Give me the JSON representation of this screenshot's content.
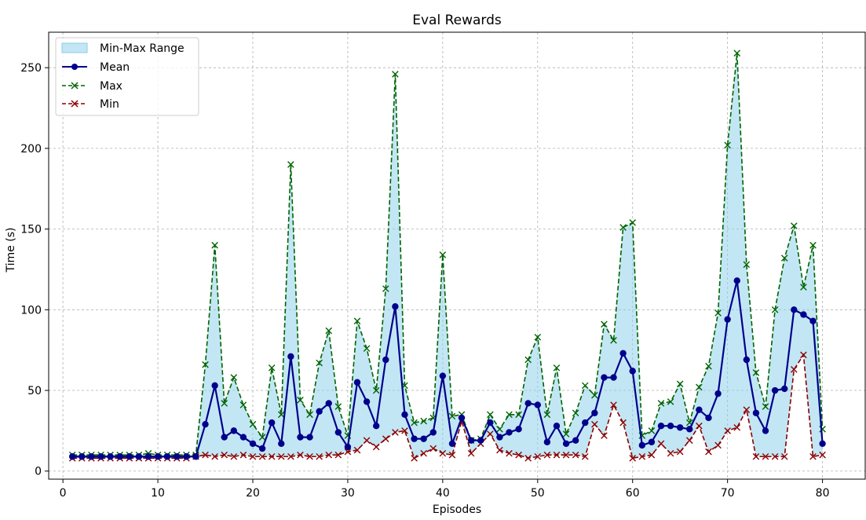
{
  "chart_data": {
    "type": "line",
    "title": "Eval Rewards",
    "xlabel": "Episodes",
    "ylabel": "Time (s)",
    "xlim": [
      -1.5,
      84.5
    ],
    "ylim": [
      -5,
      272
    ],
    "xticks": [
      0,
      10,
      20,
      30,
      40,
      50,
      60,
      70,
      80
    ],
    "yticks": [
      0,
      50,
      100,
      150,
      200,
      250
    ],
    "grid": true,
    "legend_position": "top-left",
    "x": [
      1,
      2,
      3,
      4,
      5,
      6,
      7,
      8,
      9,
      10,
      11,
      12,
      13,
      14,
      15,
      16,
      17,
      18,
      19,
      20,
      21,
      22,
      23,
      24,
      25,
      26,
      27,
      28,
      29,
      30,
      31,
      32,
      33,
      34,
      35,
      36,
      37,
      38,
      39,
      40,
      41,
      42,
      43,
      44,
      45,
      46,
      47,
      48,
      49,
      50,
      51,
      52,
      53,
      54,
      55,
      56,
      57,
      58,
      59,
      60,
      61,
      62,
      63,
      64,
      65,
      66,
      67,
      68,
      69,
      70,
      71,
      72,
      73,
      74,
      75,
      76,
      77,
      78,
      79,
      80
    ],
    "fill": {
      "name": "Min-Max Range",
      "color": "#87ceeb"
    },
    "series": [
      {
        "name": "Mean",
        "color": "#00008b",
        "style": "solid",
        "marker": "circle",
        "values": [
          9,
          9,
          9,
          9,
          9,
          9,
          9,
          9,
          9,
          9,
          9,
          9,
          9,
          9,
          29,
          53,
          21,
          25,
          21,
          17,
          14,
          30,
          17,
          71,
          21,
          21,
          37,
          42,
          24,
          15,
          55,
          43,
          28,
          69,
          102,
          35,
          20,
          20,
          24,
          59,
          17,
          33,
          19,
          19,
          30,
          21,
          24,
          26,
          42,
          41,
          18,
          28,
          17,
          19,
          30,
          36,
          58,
          58,
          73,
          62,
          16,
          18,
          28,
          28,
          27,
          26,
          38,
          33,
          48,
          94,
          118,
          69,
          36,
          25,
          50,
          51,
          100,
          97,
          93,
          17
        ]
      },
      {
        "name": "Max",
        "color": "#006400",
        "style": "dashed",
        "marker": "x",
        "values": [
          10,
          10,
          10,
          10,
          10,
          10,
          10,
          10,
          11,
          10,
          10,
          10,
          10,
          10,
          66,
          140,
          42,
          58,
          41,
          29,
          21,
          64,
          35,
          190,
          44,
          35,
          67,
          87,
          40,
          22,
          93,
          76,
          50,
          113,
          246,
          53,
          30,
          31,
          33,
          134,
          34,
          35,
          19,
          20,
          35,
          26,
          35,
          35,
          69,
          83,
          35,
          64,
          23,
          36,
          53,
          47,
          91,
          81,
          151,
          154,
          22,
          25,
          42,
          43,
          54,
          30,
          52,
          65,
          98,
          202,
          259,
          128,
          61,
          40,
          100,
          132,
          152,
          114,
          140,
          26
        ]
      },
      {
        "name": "Min",
        "color": "#8b0000",
        "style": "dashed",
        "marker": "x",
        "values": [
          8,
          8,
          8,
          8,
          8,
          8,
          8,
          8,
          8,
          8,
          8,
          8,
          8,
          9,
          10,
          9,
          10,
          9,
          10,
          9,
          9,
          9,
          9,
          9,
          10,
          9,
          9,
          10,
          10,
          12,
          13,
          19,
          15,
          20,
          24,
          25,
          8,
          11,
          14,
          11,
          10,
          31,
          11,
          17,
          23,
          13,
          11,
          10,
          8,
          9,
          10,
          10,
          10,
          10,
          9,
          29,
          22,
          41,
          30,
          8,
          9,
          10,
          17,
          11,
          12,
          19,
          28,
          12,
          16,
          25,
          27,
          38,
          9,
          9,
          9,
          9,
          63,
          72,
          9,
          10
        ]
      }
    ]
  }
}
